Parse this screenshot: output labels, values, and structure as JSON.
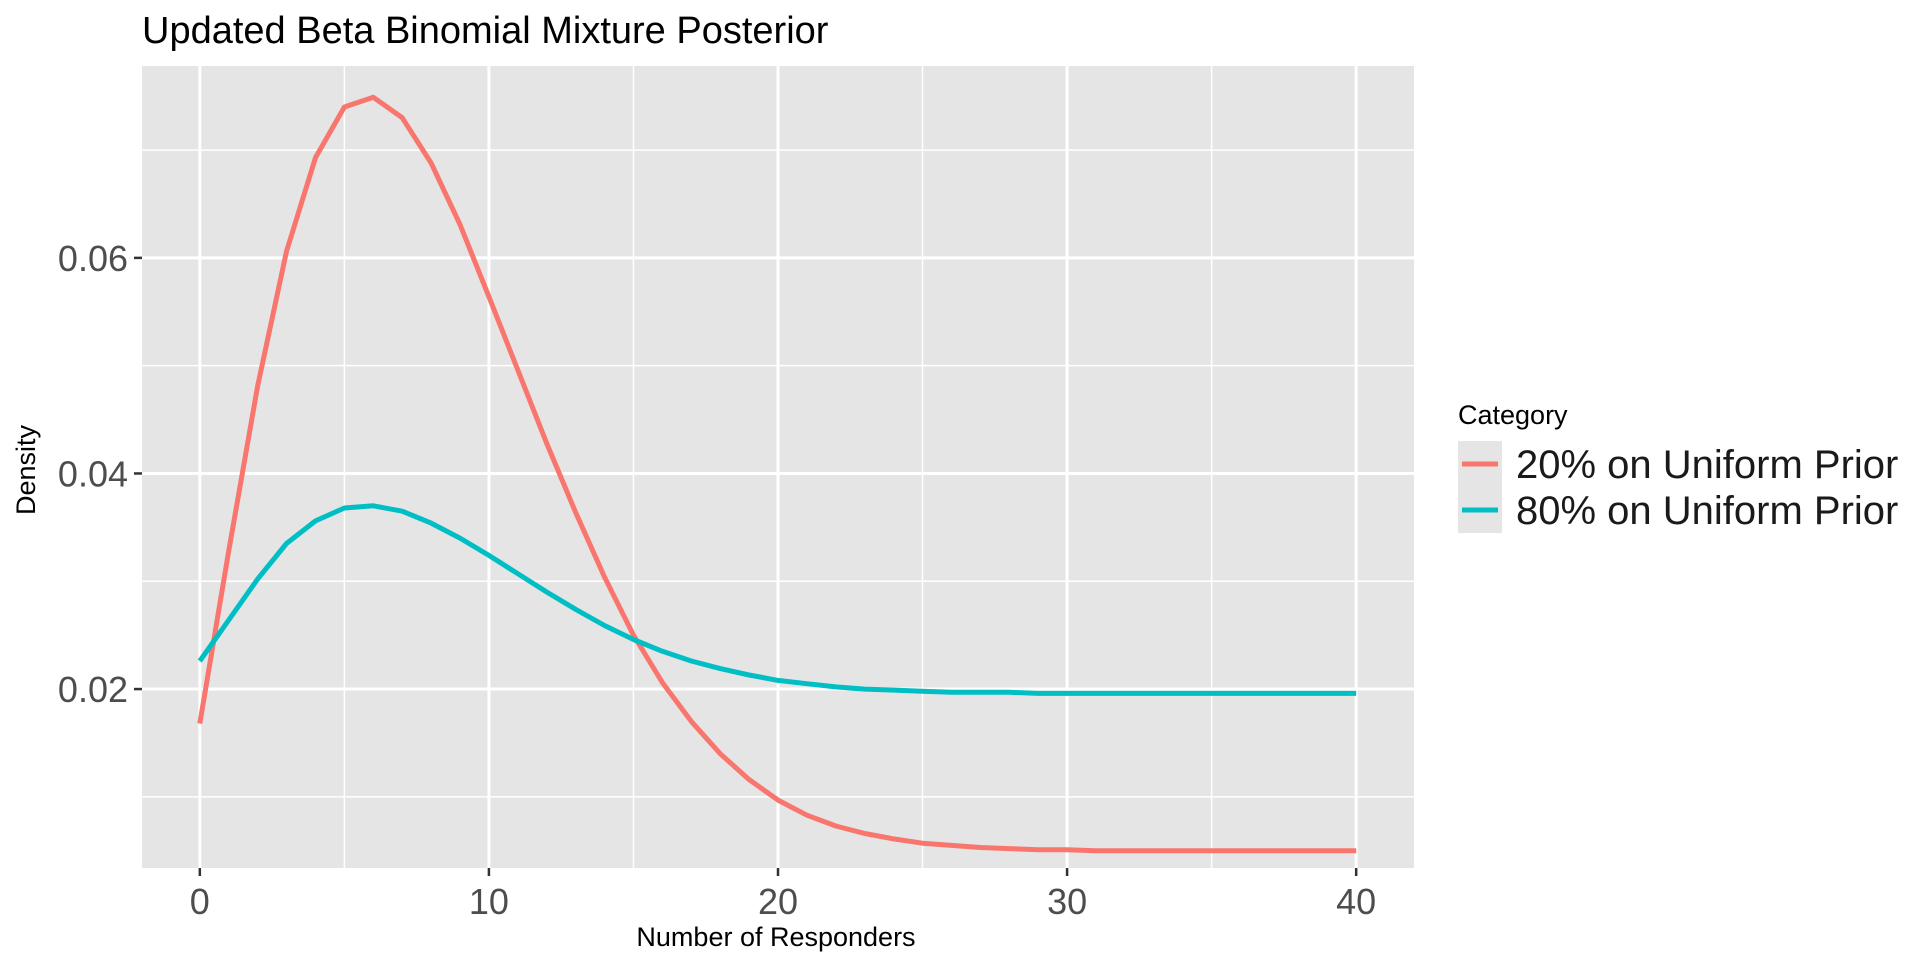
{
  "chart_data": {
    "type": "line",
    "title": "Updated Beta Binomial Mixture Posterior",
    "xlabel": "Number of Responders",
    "ylabel": "Density",
    "xlim": [
      -2,
      42
    ],
    "ylim": [
      0.0034,
      0.0778
    ],
    "x_ticks": [
      0,
      10,
      20,
      30,
      40
    ],
    "x_tick_labels": [
      "0",
      "10",
      "20",
      "30",
      "40"
    ],
    "y_ticks": [
      0.02,
      0.04,
      0.06
    ],
    "y_tick_labels": [
      "0.02",
      "0.04",
      "0.06"
    ],
    "grid": true,
    "legend": {
      "title": "Category",
      "position": "right"
    },
    "x": [
      0,
      1,
      2,
      3,
      4,
      5,
      6,
      7,
      8,
      9,
      10,
      11,
      12,
      13,
      14,
      15,
      16,
      17,
      18,
      19,
      20,
      21,
      22,
      23,
      24,
      25,
      26,
      27,
      28,
      29,
      30,
      31,
      32,
      33,
      34,
      35,
      36,
      37,
      38,
      39,
      40
    ],
    "series": [
      {
        "name": "20% on Uniform Prior",
        "color": "#F8766D",
        "values": [
          0.0168,
          0.0328,
          0.0481,
          0.0606,
          0.0693,
          0.074,
          0.0749,
          0.073,
          0.0688,
          0.0631,
          0.0564,
          0.0496,
          0.0428,
          0.0364,
          0.0304,
          0.025,
          0.0206,
          0.017,
          0.014,
          0.0116,
          0.0097,
          0.0083,
          0.0073,
          0.0066,
          0.0061,
          0.0057,
          0.0055,
          0.0053,
          0.0052,
          0.0051,
          0.0051,
          0.005,
          0.005,
          0.005,
          0.005,
          0.005,
          0.005,
          0.005,
          0.005,
          0.005,
          0.005
        ]
      },
      {
        "name": "80% on Uniform Prior",
        "color": "#00BFC4",
        "values": [
          0.0226,
          0.0264,
          0.0302,
          0.0335,
          0.0356,
          0.0368,
          0.037,
          0.0365,
          0.0354,
          0.034,
          0.0324,
          0.0307,
          0.029,
          0.0274,
          0.0259,
          0.0246,
          0.0235,
          0.0226,
          0.0219,
          0.0213,
          0.0208,
          0.0205,
          0.0202,
          0.02,
          0.0199,
          0.0198,
          0.0197,
          0.0197,
          0.0197,
          0.0196,
          0.0196,
          0.0196,
          0.0196,
          0.0196,
          0.0196,
          0.0196,
          0.0196,
          0.0196,
          0.0196,
          0.0196,
          0.0196
        ]
      }
    ]
  }
}
